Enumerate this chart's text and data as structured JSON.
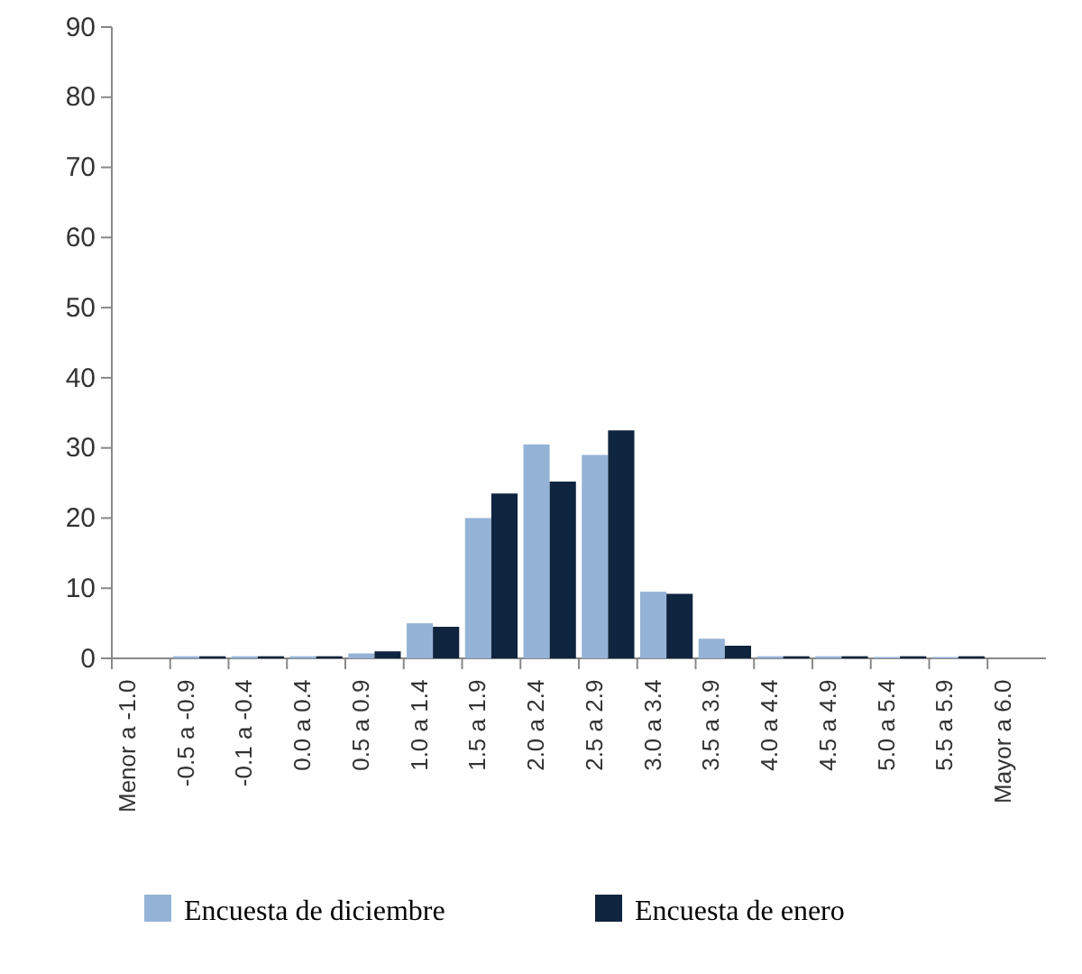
{
  "chart_data": {
    "type": "bar",
    "categories": [
      "Menor a -1.0",
      "-0.5 a -0.9",
      "-0.1 a -0.4",
      "0.0 a 0.4",
      "0.5 a 0.9",
      "1.0 a 1.4",
      "1.5 a 1.9",
      "2.0 a 2.4",
      "2.5 a 2.9",
      "3.0 a 3.4",
      "3.5 a 3.9",
      "4.0 a 4.4",
      "4.5 a 4.9",
      "5.0 a 5.4",
      "5.5 a 5.9",
      "Mayor a 6.0"
    ],
    "series": [
      {
        "name": "Encuesta de diciembre",
        "color": "#95b3d7",
        "values": [
          0,
          0.3,
          0.3,
          0.3,
          0.7,
          5,
          20,
          30.5,
          29,
          9.5,
          2.8,
          0.3,
          0.3,
          0.2,
          0.2,
          0
        ]
      },
      {
        "name": "Encuesta de enero",
        "color": "#0f243e",
        "values": [
          0,
          0.3,
          0.3,
          0.3,
          1,
          4.5,
          23.5,
          25.2,
          32.5,
          9.2,
          1.8,
          0.3,
          0.3,
          0.3,
          0.3,
          0
        ]
      }
    ],
    "ylim": [
      0,
      90
    ],
    "yticks": [
      0,
      10,
      20,
      30,
      40,
      50,
      60,
      70,
      80,
      90
    ],
    "grid": false,
    "legend": "bottom"
  }
}
